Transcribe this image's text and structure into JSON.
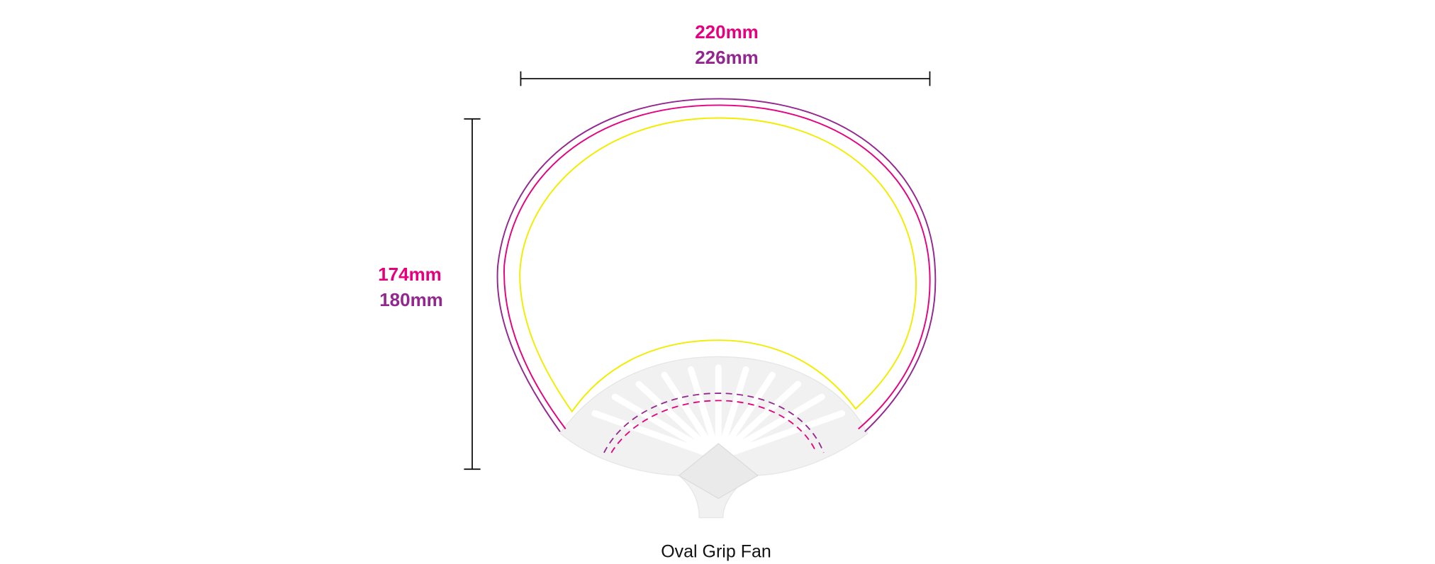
{
  "dimensions": {
    "width_inner": "220mm",
    "width_outer": "226mm",
    "height_inner": "174mm",
    "height_outer": "180mm"
  },
  "caption": "Oval Grip Fan"
}
